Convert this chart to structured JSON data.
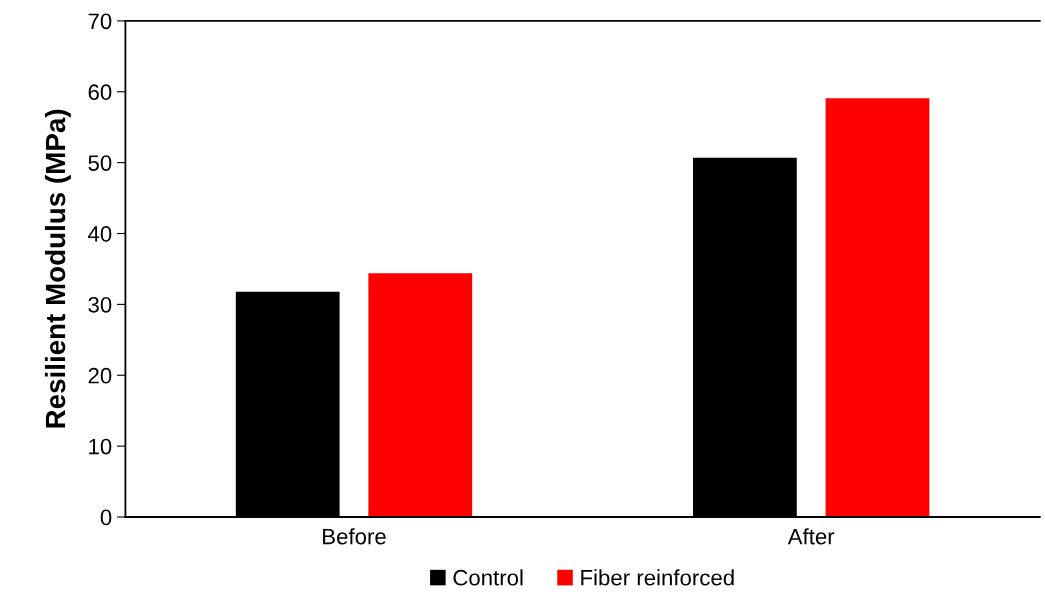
{
  "chart_data": {
    "type": "bar",
    "ylabel": "Resilient Modulus (MPa)",
    "categories": [
      "Before",
      "After"
    ],
    "series": [
      {
        "name": "Control",
        "color": "#000000",
        "values": [
          31.8,
          50.7
        ]
      },
      {
        "name": "Fiber reinforced",
        "color": "#ff0000",
        "values": [
          34.4,
          59.1
        ]
      }
    ],
    "ylim": [
      0,
      70
    ],
    "yticks": [
      0,
      10,
      20,
      30,
      40,
      50,
      60,
      70
    ],
    "grid": false,
    "legend": "bottom"
  }
}
